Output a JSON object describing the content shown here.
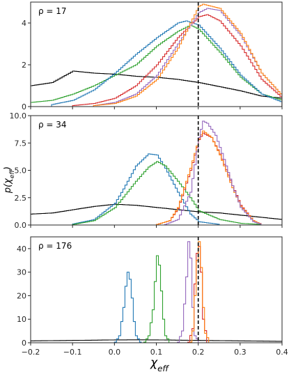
{
  "chart_data": {
    "type": "line",
    "xlabel": "χ_eff",
    "ylabel": "p(χ_eff)",
    "xlim": [
      -0.2,
      0.4
    ],
    "x_ticks": [
      "−0.2",
      "−0.1",
      "0.0",
      "0.1",
      "0.2",
      "0.3",
      "0.4"
    ],
    "vline_x": 0.2,
    "colors": {
      "black": "#000000",
      "blue": "#1f77b4",
      "green": "#2ca02c",
      "red": "#d62728",
      "purple": "#9467bd",
      "orange": "#ff7f0e"
    },
    "panels": [
      {
        "annotation": "ρ = 17",
        "ylim": [
          0,
          5
        ],
        "y_ticks": [
          0,
          2,
          4
        ],
        "series": [
          {
            "color": "black",
            "x": [
              -0.2,
              -0.15,
              -0.1,
              -0.05,
              0.0,
              0.05,
              0.1,
              0.15,
              0.2,
              0.25,
              0.3,
              0.35,
              0.4
            ],
            "y": [
              1.0,
              1.15,
              1.7,
              1.6,
              1.55,
              1.45,
              1.4,
              1.3,
              1.15,
              0.95,
              0.75,
              0.5,
              0.4
            ]
          },
          {
            "color": "green",
            "x": [
              -0.2,
              -0.15,
              -0.1,
              -0.05,
              0.0,
              0.05,
              0.1,
              0.15,
              0.18,
              0.2,
              0.25,
              0.3,
              0.35,
              0.4
            ],
            "y": [
              0.2,
              0.3,
              0.6,
              1.0,
              1.5,
              2.0,
              2.9,
              3.6,
              3.9,
              3.7,
              2.6,
              1.4,
              0.6,
              0.3
            ]
          },
          {
            "color": "blue",
            "x": [
              -0.15,
              -0.1,
              -0.05,
              0.0,
              0.05,
              0.1,
              0.15,
              0.17,
              0.2,
              0.25,
              0.3,
              0.35,
              0.4
            ],
            "y": [
              0.1,
              0.3,
              0.8,
              1.6,
              2.5,
              3.3,
              4.0,
              4.1,
              3.9,
              2.8,
              1.5,
              0.6,
              0.2
            ]
          },
          {
            "color": "red",
            "x": [
              -0.1,
              -0.05,
              0.0,
              0.05,
              0.1,
              0.15,
              0.2,
              0.22,
              0.25,
              0.3,
              0.35,
              0.4
            ],
            "y": [
              0.05,
              0.15,
              0.4,
              1.0,
              2.0,
              3.3,
              4.3,
              4.4,
              4.1,
              2.9,
              1.3,
              0.4
            ]
          },
          {
            "color": "purple",
            "x": [
              -0.05,
              0.0,
              0.05,
              0.1,
              0.15,
              0.2,
              0.22,
              0.25,
              0.3,
              0.35,
              0.4
            ],
            "y": [
              0.05,
              0.2,
              0.6,
              1.5,
              3.0,
              4.5,
              4.7,
              4.6,
              3.4,
              1.6,
              0.5
            ]
          },
          {
            "color": "orange",
            "x": [
              -0.05,
              0.0,
              0.05,
              0.1,
              0.15,
              0.2,
              0.21,
              0.25,
              0.3,
              0.35,
              0.4
            ],
            "y": [
              0.05,
              0.15,
              0.5,
              1.3,
              2.8,
              4.8,
              4.9,
              4.7,
              3.5,
              1.6,
              0.5
            ]
          }
        ]
      },
      {
        "annotation": "ρ = 34",
        "ylim": [
          0,
          10
        ],
        "y_ticks": [
          0.0,
          2.5,
          5.0,
          7.5,
          10.0
        ],
        "series": [
          {
            "color": "black",
            "x": [
              -0.2,
              -0.15,
              -0.1,
              -0.05,
              0.0,
              0.05,
              0.1,
              0.15,
              0.2,
              0.25,
              0.3,
              0.35,
              0.4
            ],
            "y": [
              1.0,
              1.1,
              1.4,
              1.7,
              1.9,
              1.8,
              1.6,
              1.4,
              1.2,
              1.1,
              0.9,
              0.7,
              0.5
            ]
          },
          {
            "color": "blue",
            "x": [
              -0.1,
              -0.05,
              0.0,
              0.02,
              0.05,
              0.08,
              0.1,
              0.12,
              0.15,
              0.18,
              0.2,
              0.25
            ],
            "y": [
              0.1,
              0.5,
              2.0,
              3.3,
              5.4,
              6.5,
              6.4,
              5.2,
              3.0,
              1.0,
              0.3,
              0.05
            ]
          },
          {
            "color": "green",
            "x": [
              -0.1,
              -0.05,
              0.0,
              0.05,
              0.08,
              0.1,
              0.12,
              0.15,
              0.18,
              0.2,
              0.25,
              0.3,
              0.35
            ],
            "y": [
              0.05,
              0.4,
              1.6,
              4.0,
              5.3,
              5.8,
              5.4,
              4.0,
              2.5,
              1.3,
              0.5,
              0.15,
              0.05
            ]
          },
          {
            "color": "red",
            "x": [
              0.1,
              0.13,
              0.15,
              0.18,
              0.2,
              0.21,
              0.23,
              0.25,
              0.28,
              0.3,
              0.33,
              0.35
            ],
            "y": [
              0.05,
              0.4,
              1.5,
              5.0,
              7.8,
              8.4,
              8.0,
              6.5,
              3.6,
              1.8,
              0.4,
              0.05
            ]
          },
          {
            "color": "orange",
            "x": [
              0.1,
              0.13,
              0.15,
              0.18,
              0.2,
              0.21,
              0.23,
              0.25,
              0.28,
              0.3,
              0.33,
              0.35
            ],
            "y": [
              0.05,
              0.4,
              1.6,
              5.2,
              7.9,
              8.6,
              8.0,
              6.4,
              3.4,
              1.7,
              0.4,
              0.05
            ]
          },
          {
            "color": "purple",
            "x": [
              0.12,
              0.15,
              0.18,
              0.2,
              0.21,
              0.22,
              0.24,
              0.26,
              0.28,
              0.3,
              0.33,
              0.35
            ],
            "y": [
              0.05,
              0.5,
              3.0,
              8.0,
              9.5,
              9.3,
              8.2,
              6.0,
              3.6,
              1.6,
              0.3,
              0.05
            ]
          }
        ]
      },
      {
        "annotation": "ρ = 176",
        "ylim": [
          0,
          45
        ],
        "y_ticks": [
          0,
          10,
          20,
          30,
          40
        ],
        "series": [
          {
            "color": "black",
            "x": [
              -0.2,
              -0.15,
              -0.1,
              -0.05,
              0.0,
              0.05,
              0.1,
              0.15,
              0.2,
              0.25,
              0.3,
              0.35,
              0.4
            ],
            "y": [
              0.8,
              0.9,
              1.0,
              1.1,
              1.2,
              1.25,
              1.2,
              1.1,
              1.0,
              0.9,
              0.8,
              0.7,
              0.6
            ]
          },
          {
            "color": "blue",
            "x": [
              0.0,
              0.01,
              0.02,
              0.025,
              0.03,
              0.035,
              0.04,
              0.045,
              0.05,
              0.06
            ],
            "y": [
              0.3,
              3.0,
              15.0,
              24.0,
              30.0,
              27.0,
              19.0,
              9.0,
              3.0,
              0.3
            ]
          },
          {
            "color": "green",
            "x": [
              0.07,
              0.08,
              0.09,
              0.095,
              0.1,
              0.105,
              0.11,
              0.115,
              0.12,
              0.13
            ],
            "y": [
              0.3,
              3.0,
              14.0,
              26.0,
              37.0,
              33.0,
              22.0,
              10.0,
              3.0,
              0.3
            ]
          },
          {
            "color": "purple",
            "x": [
              0.15,
              0.16,
              0.17,
              0.175,
              0.18,
              0.185,
              0.19,
              0.2
            ],
            "y": [
              0.3,
              5.0,
              28.0,
              43.0,
              36.0,
              15.0,
              3.0,
              0.3
            ]
          },
          {
            "color": "red",
            "x": [
              0.175,
              0.185,
              0.19,
              0.195,
              0.2,
              0.205,
              0.21,
              0.22
            ],
            "y": [
              0.3,
              6.0,
              25.0,
              38.0,
              41.0,
              30.0,
              10.0,
              0.3
            ]
          },
          {
            "color": "orange",
            "x": [
              0.18,
              0.185,
              0.19,
              0.195,
              0.2,
              0.205,
              0.21,
              0.215,
              0.225
            ],
            "y": [
              0.3,
              5.0,
              20.0,
              35.0,
              43.0,
              32.0,
              15.0,
              4.0,
              0.3
            ]
          }
        ]
      }
    ]
  }
}
